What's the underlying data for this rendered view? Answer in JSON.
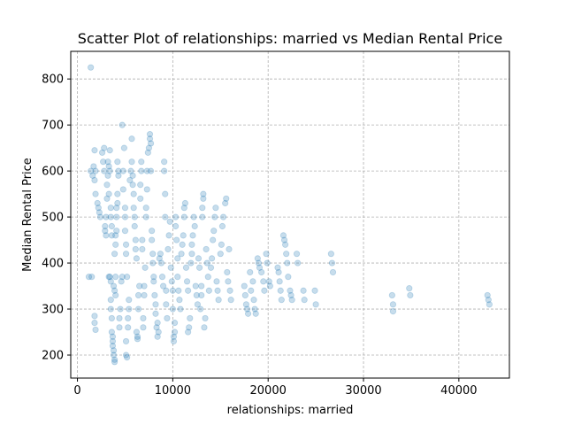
{
  "chart_data": {
    "type": "scatter",
    "title": "Scatter Plot of relationships: married vs Median Rental Price",
    "xlabel": "relationships: married",
    "ylabel": "Median Rental Price",
    "xlim": [
      -700,
      45300
    ],
    "ylim": [
      150,
      860
    ],
    "xticks": [
      0,
      10000,
      20000,
      30000,
      40000
    ],
    "yticks": [
      200,
      300,
      400,
      500,
      600,
      700,
      800
    ],
    "grid": true,
    "point_color": "#1f77b4",
    "point_alpha": 0.25,
    "series": [
      {
        "values_note_free": true,
        "points": [
          [
            1400,
            825
          ],
          [
            1200,
            370
          ],
          [
            1500,
            370
          ],
          [
            1400,
            600
          ],
          [
            1600,
            590
          ],
          [
            1800,
            580
          ],
          [
            1800,
            645
          ],
          [
            1900,
            600
          ],
          [
            1700,
            610
          ],
          [
            1900,
            550
          ],
          [
            1800,
            285
          ],
          [
            1800,
            270
          ],
          [
            1900,
            255
          ],
          [
            2100,
            530
          ],
          [
            2200,
            520
          ],
          [
            2300,
            510
          ],
          [
            2400,
            500
          ],
          [
            2600,
            640
          ],
          [
            2700,
            620
          ],
          [
            2800,
            600
          ],
          [
            2800,
            650
          ],
          [
            2900,
            480
          ],
          [
            2900,
            470
          ],
          [
            3000,
            500
          ],
          [
            3000,
            460
          ],
          [
            3100,
            570
          ],
          [
            3100,
            540
          ],
          [
            3200,
            620
          ],
          [
            3200,
            590
          ],
          [
            3300,
            550
          ],
          [
            3300,
            610
          ],
          [
            3400,
            645
          ],
          [
            3400,
            600
          ],
          [
            3500,
            520
          ],
          [
            3500,
            500
          ],
          [
            3600,
            480
          ],
          [
            3600,
            460
          ],
          [
            3300,
            370
          ],
          [
            3400,
            370
          ],
          [
            3500,
            360
          ],
          [
            3500,
            320
          ],
          [
            3500,
            300
          ],
          [
            3600,
            280
          ],
          [
            3600,
            250
          ],
          [
            3700,
            240
          ],
          [
            3700,
            230
          ],
          [
            3700,
            220
          ],
          [
            3800,
            210
          ],
          [
            3800,
            200
          ],
          [
            3900,
            190
          ],
          [
            3900,
            185
          ],
          [
            3800,
            350
          ],
          [
            3900,
            340
          ],
          [
            4000,
            330
          ],
          [
            4000,
            370
          ],
          [
            3900,
            420
          ],
          [
            4000,
            440
          ],
          [
            4000,
            460
          ],
          [
            4100,
            470
          ],
          [
            4100,
            500
          ],
          [
            4100,
            520
          ],
          [
            4200,
            530
          ],
          [
            4200,
            550
          ],
          [
            4300,
            590
          ],
          [
            4200,
            620
          ],
          [
            4300,
            600
          ],
          [
            4400,
            280
          ],
          [
            4400,
            260
          ],
          [
            4500,
            300
          ],
          [
            4600,
            360
          ],
          [
            4700,
            370
          ],
          [
            4800,
            560
          ],
          [
            4800,
            600
          ],
          [
            4700,
            700
          ],
          [
            4900,
            650
          ],
          [
            5000,
            500
          ],
          [
            5000,
            520
          ],
          [
            5000,
            470
          ],
          [
            5100,
            440
          ],
          [
            5100,
            420
          ],
          [
            5200,
            370
          ],
          [
            5100,
            230
          ],
          [
            5100,
            200
          ],
          [
            5200,
            195
          ],
          [
            5300,
            260
          ],
          [
            5300,
            280
          ],
          [
            5400,
            300
          ],
          [
            5400,
            320
          ],
          [
            5500,
            580
          ],
          [
            5600,
            600
          ],
          [
            5700,
            620
          ],
          [
            5700,
            670
          ],
          [
            5800,
            590
          ],
          [
            5800,
            570
          ],
          [
            5900,
            550
          ],
          [
            5900,
            520
          ],
          [
            6000,
            500
          ],
          [
            6000,
            480
          ],
          [
            6100,
            450
          ],
          [
            6100,
            430
          ],
          [
            6200,
            410
          ],
          [
            6200,
            250
          ],
          [
            6300,
            240
          ],
          [
            6300,
            235
          ],
          [
            6400,
            300
          ],
          [
            6400,
            330
          ],
          [
            6500,
            350
          ],
          [
            6600,
            570
          ],
          [
            6600,
            540
          ],
          [
            6700,
            620
          ],
          [
            6700,
            600
          ],
          [
            6800,
            450
          ],
          [
            6800,
            430
          ],
          [
            6900,
            260
          ],
          [
            6900,
            280
          ],
          [
            7000,
            330
          ],
          [
            7000,
            350
          ],
          [
            7100,
            390
          ],
          [
            7200,
            500
          ],
          [
            7200,
            520
          ],
          [
            7300,
            560
          ],
          [
            7300,
            600
          ],
          [
            7400,
            640
          ],
          [
            7500,
            650
          ],
          [
            7600,
            680
          ],
          [
            7600,
            670
          ],
          [
            7700,
            660
          ],
          [
            7700,
            600
          ],
          [
            7800,
            470
          ],
          [
            7800,
            450
          ],
          [
            7900,
            420
          ],
          [
            7900,
            400
          ],
          [
            8000,
            370
          ],
          [
            8000,
            360
          ],
          [
            8100,
            330
          ],
          [
            8200,
            310
          ],
          [
            8200,
            290
          ],
          [
            8300,
            260
          ],
          [
            8400,
            270
          ],
          [
            8400,
            240
          ],
          [
            8500,
            250
          ],
          [
            8600,
            410
          ],
          [
            8700,
            420
          ],
          [
            8800,
            400
          ],
          [
            8900,
            370
          ],
          [
            9000,
            350
          ],
          [
            9100,
            600
          ],
          [
            9100,
            620
          ],
          [
            9200,
            550
          ],
          [
            9200,
            500
          ],
          [
            9300,
            340
          ],
          [
            9300,
            310
          ],
          [
            9400,
            280
          ],
          [
            9500,
            430
          ],
          [
            9600,
            460
          ],
          [
            9700,
            490
          ],
          [
            9800,
            390
          ],
          [
            9900,
            360
          ],
          [
            10000,
            340
          ],
          [
            10000,
            300
          ],
          [
            10100,
            240
          ],
          [
            10100,
            230
          ],
          [
            10200,
            250
          ],
          [
            10200,
            270
          ],
          [
            10300,
            480
          ],
          [
            10300,
            500
          ],
          [
            10400,
            450
          ],
          [
            10500,
            410
          ],
          [
            10500,
            370
          ],
          [
            10600,
            340
          ],
          [
            10700,
            320
          ],
          [
            10800,
            300
          ],
          [
            10900,
            420
          ],
          [
            11000,
            440
          ],
          [
            11100,
            460
          ],
          [
            11200,
            500
          ],
          [
            11200,
            520
          ],
          [
            11300,
            530
          ],
          [
            11400,
            390
          ],
          [
            11500,
            360
          ],
          [
            11600,
            340
          ],
          [
            11600,
            250
          ],
          [
            11700,
            260
          ],
          [
            11800,
            280
          ],
          [
            11900,
            400
          ],
          [
            12000,
            420
          ],
          [
            12000,
            440
          ],
          [
            12100,
            460
          ],
          [
            12200,
            500
          ],
          [
            12300,
            480
          ],
          [
            12400,
            350
          ],
          [
            12500,
            330
          ],
          [
            12600,
            310
          ],
          [
            12700,
            410
          ],
          [
            12800,
            390
          ],
          [
            12900,
            300
          ],
          [
            13000,
            350
          ],
          [
            13000,
            330
          ],
          [
            13100,
            500
          ],
          [
            13100,
            520
          ],
          [
            13200,
            540
          ],
          [
            13200,
            550
          ],
          [
            13300,
            260
          ],
          [
            13400,
            280
          ],
          [
            13500,
            430
          ],
          [
            13600,
            400
          ],
          [
            13700,
            370
          ],
          [
            13800,
            340
          ],
          [
            14000,
            390
          ],
          [
            14100,
            410
          ],
          [
            14200,
            450
          ],
          [
            14300,
            470
          ],
          [
            14400,
            500
          ],
          [
            14500,
            520
          ],
          [
            14600,
            360
          ],
          [
            14700,
            340
          ],
          [
            14800,
            320
          ],
          [
            15000,
            420
          ],
          [
            15100,
            440
          ],
          [
            15200,
            480
          ],
          [
            15300,
            500
          ],
          [
            15500,
            530
          ],
          [
            15600,
            540
          ],
          [
            15700,
            380
          ],
          [
            15800,
            360
          ],
          [
            15900,
            430
          ],
          [
            16000,
            340
          ],
          [
            16100,
            320
          ],
          [
            17500,
            350
          ],
          [
            17600,
            330
          ],
          [
            17700,
            310
          ],
          [
            17800,
            300
          ],
          [
            17900,
            290
          ],
          [
            18100,
            380
          ],
          [
            18200,
            340
          ],
          [
            18400,
            360
          ],
          [
            18500,
            320
          ],
          [
            18600,
            300
          ],
          [
            18700,
            290
          ],
          [
            18900,
            410
          ],
          [
            19000,
            400
          ],
          [
            19100,
            390
          ],
          [
            19300,
            380
          ],
          [
            19500,
            360
          ],
          [
            19600,
            340
          ],
          [
            19800,
            420
          ],
          [
            19900,
            400
          ],
          [
            20100,
            360
          ],
          [
            20200,
            350
          ],
          [
            21000,
            390
          ],
          [
            21100,
            380
          ],
          [
            21200,
            360
          ],
          [
            21300,
            340
          ],
          [
            21400,
            320
          ],
          [
            21600,
            460
          ],
          [
            21700,
            450
          ],
          [
            21800,
            440
          ],
          [
            21900,
            420
          ],
          [
            22000,
            400
          ],
          [
            22100,
            370
          ],
          [
            22300,
            340
          ],
          [
            22400,
            330
          ],
          [
            22500,
            320
          ],
          [
            23000,
            420
          ],
          [
            23100,
            400
          ],
          [
            23700,
            340
          ],
          [
            23800,
            320
          ],
          [
            24900,
            340
          ],
          [
            25000,
            310
          ],
          [
            26600,
            420
          ],
          [
            26700,
            400
          ],
          [
            26800,
            380
          ],
          [
            33000,
            330
          ],
          [
            33100,
            310
          ],
          [
            33100,
            295
          ],
          [
            34800,
            345
          ],
          [
            34900,
            330
          ],
          [
            43000,
            330
          ],
          [
            43100,
            320
          ],
          [
            43200,
            310
          ]
        ]
      }
    ]
  }
}
